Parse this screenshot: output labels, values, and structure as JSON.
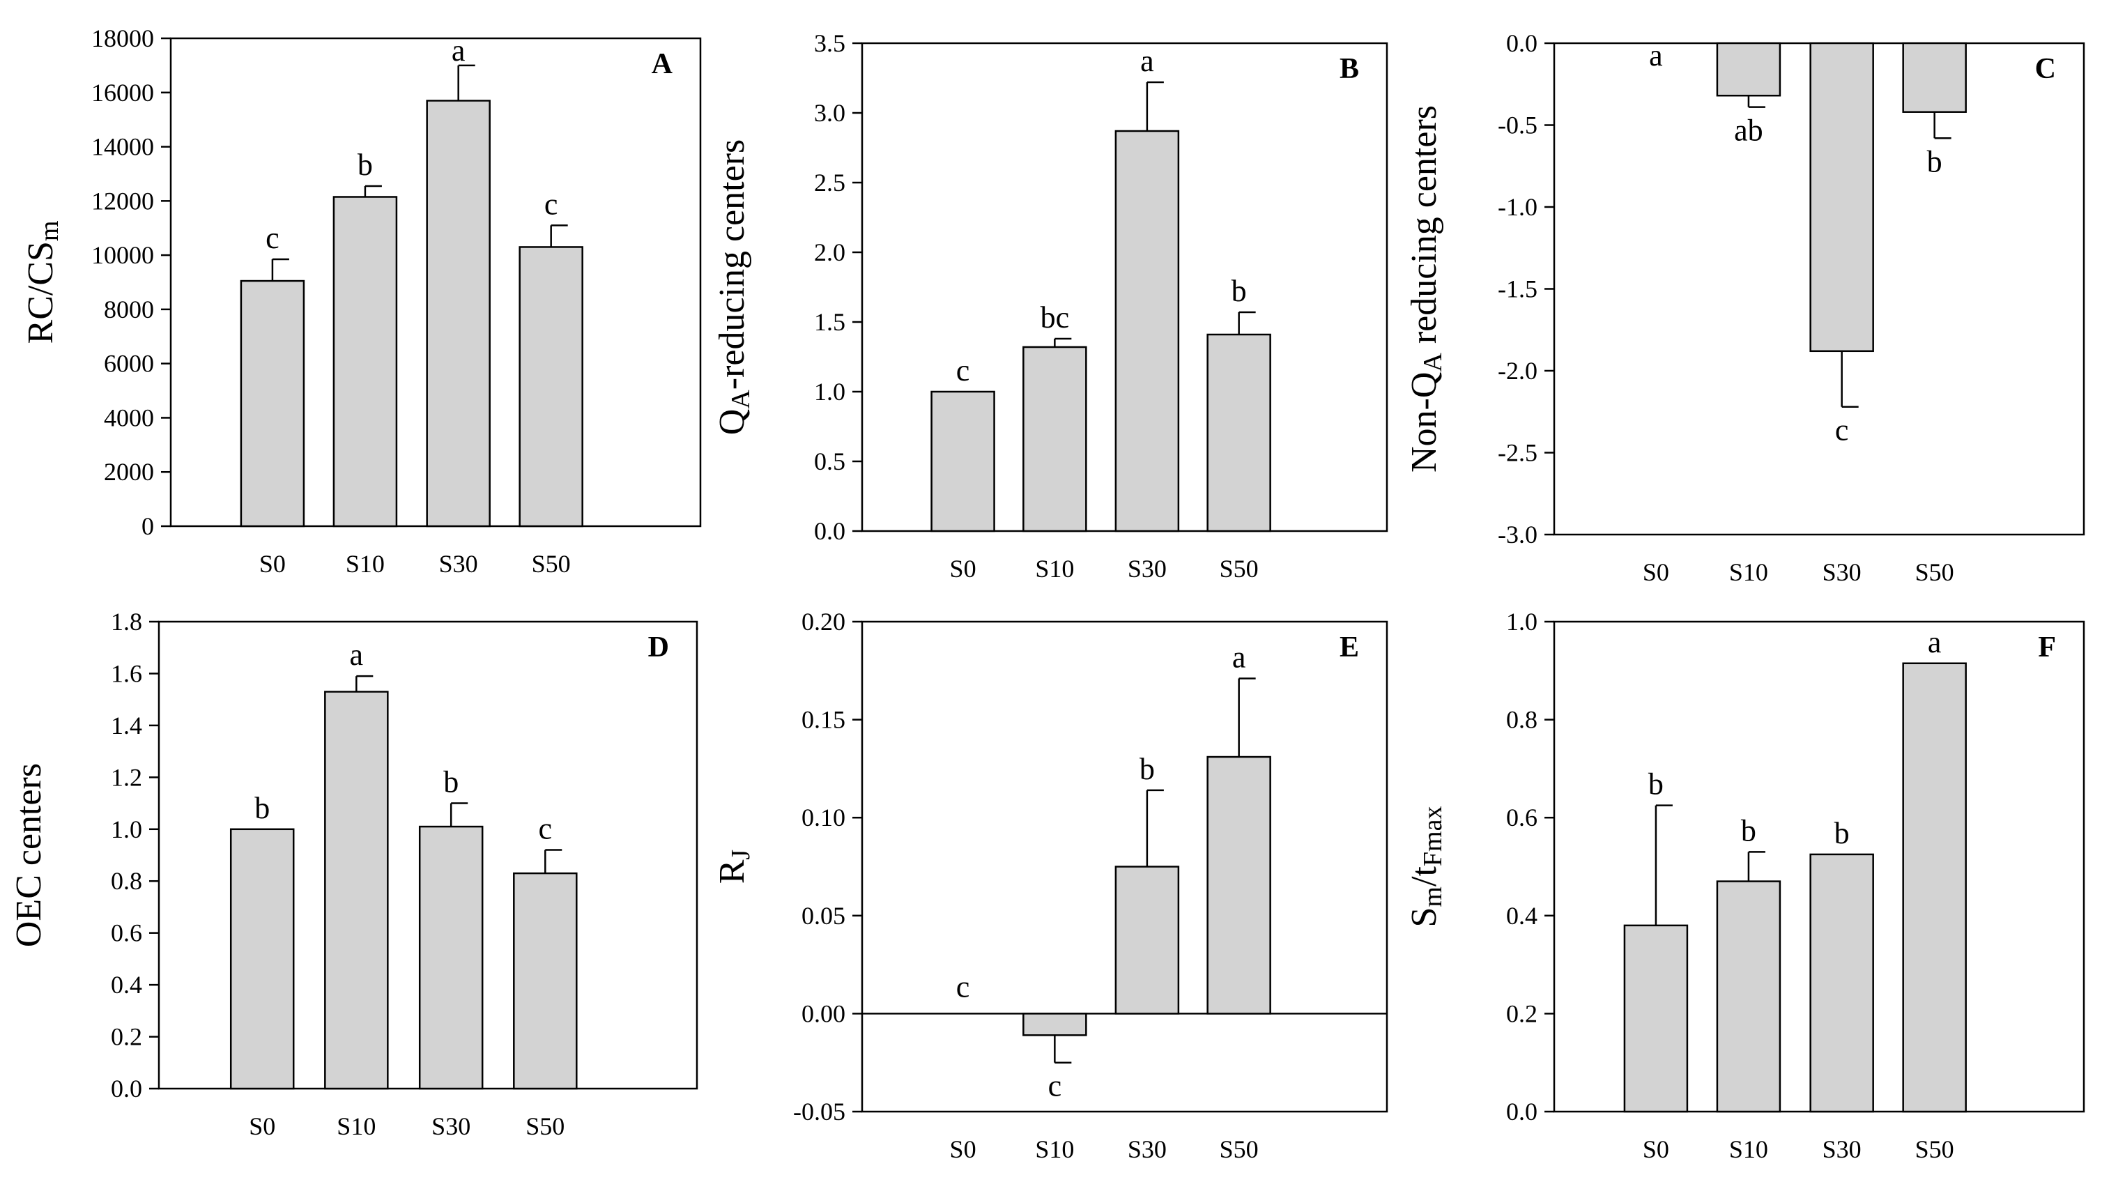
{
  "chart_data": [
    {
      "panel": "A",
      "type": "bar",
      "categories": [
        "S0",
        "S10",
        "S30",
        "S50"
      ],
      "values": [
        9050,
        12150,
        15700,
        10300
      ],
      "errors": [
        800,
        400,
        1300,
        800
      ],
      "letters": [
        "c",
        "b",
        "a",
        "c"
      ],
      "ylim": [
        0,
        18000
      ],
      "yticks": [
        0,
        2000,
        4000,
        6000,
        8000,
        10000,
        12000,
        14000,
        16000,
        18000
      ],
      "ytick_labels": [
        "0",
        "2000",
        "4000",
        "6000",
        "8000",
        "10000",
        "12000",
        "14000",
        "16000",
        "18000"
      ],
      "ylabel": {
        "main": "RC/CS",
        "sub": "m",
        "after": ""
      }
    },
    {
      "panel": "B",
      "type": "bar",
      "categories": [
        "S0",
        "S10",
        "S30",
        "S50"
      ],
      "values": [
        1.0,
        1.32,
        2.87,
        1.41
      ],
      "errors": [
        0,
        0.06,
        0.35,
        0.16
      ],
      "letters": [
        "c",
        "bc",
        "a",
        "b"
      ],
      "ylim": [
        0,
        3.5
      ],
      "yticks": [
        0,
        0.5,
        1.0,
        1.5,
        2.0,
        2.5,
        3.0,
        3.5
      ],
      "ytick_labels": [
        "0.0",
        "0.5",
        "1.0",
        "1.5",
        "2.0",
        "2.5",
        "3.0",
        "3.5"
      ],
      "ylabel": {
        "main": "Q",
        "sub": "A",
        "after": "-reducing centers"
      }
    },
    {
      "panel": "C",
      "type": "bar",
      "categories": [
        "S0",
        "S10",
        "S30",
        "S50"
      ],
      "values": [
        0,
        -0.32,
        -1.88,
        -0.42
      ],
      "errors": [
        0,
        0.07,
        0.34,
        0.16
      ],
      "letters": [
        "a",
        "ab",
        "c",
        "b"
      ],
      "ylim": [
        -3.0,
        0
      ],
      "yticks": [
        -3.0,
        -2.5,
        -2.0,
        -1.5,
        -1.0,
        -0.5,
        0.0
      ],
      "ytick_labels": [
        "-3.0",
        "-2.5",
        "-2.0",
        "-1.5",
        "-1.0",
        "-0.5",
        "0.0"
      ],
      "ylabel": {
        "main": "Non-Q",
        "sub": "A",
        "after": " reducing centers"
      }
    },
    {
      "panel": "D",
      "type": "bar",
      "categories": [
        "S0",
        "S10",
        "S30",
        "S50"
      ],
      "values": [
        1.0,
        1.53,
        1.01,
        0.83
      ],
      "errors": [
        0,
        0.06,
        0.09,
        0.09
      ],
      "letters": [
        "b",
        "a",
        "b",
        "c"
      ],
      "ylim": [
        0,
        1.8
      ],
      "yticks": [
        0,
        0.2,
        0.4,
        0.6,
        0.8,
        1.0,
        1.2,
        1.4,
        1.6,
        1.8
      ],
      "ytick_labels": [
        "0.0",
        "0.2",
        "0.4",
        "0.6",
        "0.8",
        "1.0",
        "1.2",
        "1.4",
        "1.6",
        "1.8"
      ],
      "ylabel": {
        "main": "OEC centers",
        "sub": "",
        "after": ""
      }
    },
    {
      "panel": "E",
      "type": "bar",
      "categories": [
        "S0",
        "S10",
        "S30",
        "S50"
      ],
      "values": [
        0,
        -0.011,
        0.075,
        0.131
      ],
      "errors": [
        0,
        0.014,
        0.039,
        0.04
      ],
      "letters": [
        "c",
        "c",
        "b",
        "a"
      ],
      "ylim": [
        -0.05,
        0.2
      ],
      "yticks": [
        -0.05,
        0,
        0.05,
        0.1,
        0.15,
        0.2
      ],
      "ytick_labels": [
        "-0.05",
        "0.00",
        "0.05",
        "0.10",
        "0.15",
        "0.20"
      ],
      "ylabel": {
        "main": "R",
        "sub": "J",
        "after": ""
      }
    },
    {
      "panel": "F",
      "type": "bar",
      "categories": [
        "S0",
        "S10",
        "S30",
        "S50"
      ],
      "values": [
        0.38,
        0.47,
        0.525,
        0.915
      ],
      "errors": [
        0.245,
        0.06,
        0,
        0
      ],
      "letters": [
        "b",
        "b",
        "b",
        "a"
      ],
      "ylim": [
        0,
        1.0
      ],
      "yticks": [
        0,
        0.2,
        0.4,
        0.6,
        0.8,
        1.0
      ],
      "ytick_labels": [
        "0.0",
        "0.2",
        "0.4",
        "0.6",
        "0.8",
        "1.0"
      ],
      "ylabel": {
        "main": "S",
        "sub": "m",
        "after": "/t",
        "sub2": "Fmax"
      }
    }
  ],
  "colors": {
    "bar_fill": "#d3d3d3",
    "stroke": "#000000",
    "background": "#ffffff"
  }
}
